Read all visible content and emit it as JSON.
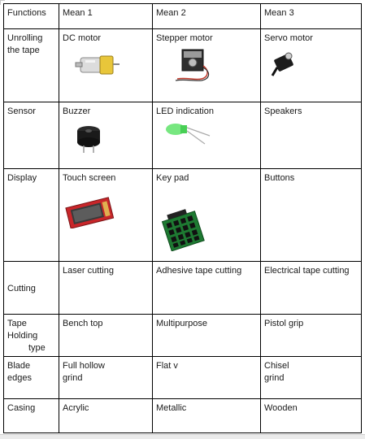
{
  "headers": [
    "Functions",
    "Mean  1",
    "Mean 2",
    "Mean 3"
  ],
  "rows": {
    "unrolling": {
      "function": [
        "Unrolling",
        "the tape"
      ],
      "means": [
        "DC motor",
        "Stepper motor",
        "Servo motor"
      ],
      "images": [
        "dc-motor-image",
        "stepper-motor-image",
        "servo-motor-image"
      ]
    },
    "sensor": {
      "function": "Sensor",
      "means": [
        "Buzzer",
        "LED indication",
        "Speakers"
      ],
      "images": [
        "buzzer-image",
        "green-led-image"
      ]
    },
    "display": {
      "function": "Display",
      "means": [
        "Touch screen",
        "Key pad",
        "Buttons"
      ],
      "images": [
        "touch-screen-image",
        "keypad-image"
      ]
    },
    "cutting": {
      "function": "Cutting",
      "means": [
        "Laser cutting",
        "Adhesive tape cutting",
        "Electrical tape cutting"
      ]
    },
    "tape_holding": {
      "function": [
        "Tape",
        "Holding",
        "type"
      ],
      "means": [
        "Bench top",
        "Multipurpose",
        "Pistol grip"
      ]
    },
    "blade_edges": {
      "function": [
        "Blade",
        "edges"
      ],
      "means": [
        [
          "Full hollow",
          "grind"
        ],
        "Flat v",
        [
          "Chisel",
          "grind"
        ]
      ]
    },
    "casing": {
      "function": "Casing",
      "means": [
        "Acrylic",
        "Metallic",
        "Wooden"
      ]
    }
  }
}
